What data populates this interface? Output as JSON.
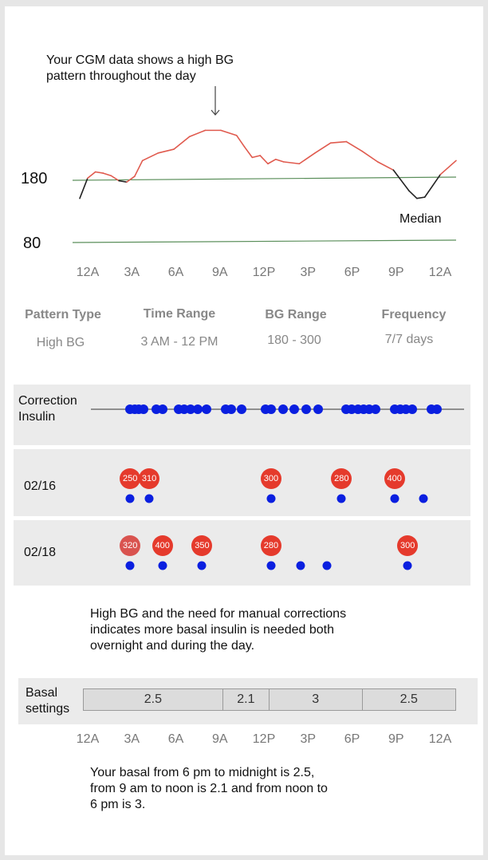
{
  "annotation": "Your CGM data shows a high BG pattern throughout the day",
  "chart_data": {
    "type": "line",
    "title": "",
    "xlabel": "",
    "ylabel": "",
    "y_reference_labels": [
      "180",
      "80"
    ],
    "median_label": "Median",
    "x_ticks": [
      "12A",
      "3A",
      "6A",
      "9A",
      "12P",
      "3P",
      "6P",
      "9P",
      "12A"
    ],
    "series": [
      {
        "name": "Median",
        "color_in_range": "#222222",
        "color_high": "#e05a4e",
        "x_hours": [
          0,
          0.5,
          1,
          1.5,
          2,
          2.5,
          3,
          3.5,
          4,
          5,
          6,
          7,
          8,
          9,
          10,
          10.5,
          11,
          11.5,
          12,
          12.5,
          13,
          14,
          15,
          16,
          17,
          18,
          19,
          20,
          21,
          21.5,
          22,
          22.5,
          23,
          24
        ],
        "y_bg": [
          150,
          182,
          192,
          190,
          186,
          178,
          176,
          185,
          210,
          222,
          228,
          248,
          258,
          258,
          250,
          232,
          215,
          218,
          205,
          212,
          208,
          205,
          222,
          238,
          240,
          225,
          208,
          195,
          162,
          150,
          152,
          170,
          188,
          210
        ]
      }
    ],
    "reference_lines": [
      {
        "y": 180,
        "color": "#5b8f5b"
      },
      {
        "y": 80,
        "color": "#5b8f5b"
      }
    ]
  },
  "pattern_table": {
    "headers": [
      "Pattern Type",
      "Time Range",
      "BG Range",
      "Frequency"
    ],
    "values": [
      "High BG",
      "3 AM - 12 PM",
      "180 - 300",
      "7/7 days"
    ]
  },
  "correction": {
    "label_line1": "Correction",
    "label_line2": "Insulin",
    "dot_hours": [
      1.8,
      2.1,
      2.4,
      2.7,
      3.6,
      4.0,
      5.1,
      5.5,
      5.9,
      6.4,
      7.0,
      8.3,
      8.7,
      9.4,
      11.0,
      11.4,
      12.2,
      13.0,
      13.8,
      14.6,
      16.5,
      16.9,
      17.3,
      17.7,
      18.1,
      18.5,
      19.8,
      20.2,
      20.6,
      21.0,
      22.3,
      22.7
    ]
  },
  "days": [
    {
      "date": "02/16",
      "boluses": [
        {
          "hour": 1.8,
          "bg": "250"
        },
        {
          "hour": 3.1,
          "bg": "310"
        },
        {
          "hour": 11.4,
          "bg": "300"
        },
        {
          "hour": 16.2,
          "bg": "280"
        },
        {
          "hour": 19.8,
          "bg": "400"
        }
      ],
      "dot_hours": [
        1.8,
        3.1,
        11.4,
        16.2,
        19.8,
        21.8
      ]
    },
    {
      "date": "02/18",
      "boluses": [
        {
          "hour": 1.8,
          "bg": "320",
          "muted": true
        },
        {
          "hour": 4.0,
          "bg": "400"
        },
        {
          "hour": 6.7,
          "bg": "350"
        },
        {
          "hour": 11.4,
          "bg": "280"
        },
        {
          "hour": 20.7,
          "bg": "300"
        }
      ],
      "dot_hours": [
        1.8,
        4.0,
        6.7,
        11.4,
        13.4,
        15.2,
        20.7
      ]
    }
  ],
  "note1": "High BG and the need for manual corrections indicates more basal insulin is needed both overnight and during the day.",
  "basal": {
    "label_line1": "Basal",
    "label_line2": "settings",
    "segments": [
      {
        "value": "2.5",
        "start_hour": 0,
        "end_hour": 9
      },
      {
        "value": "2.1",
        "start_hour": 9,
        "end_hour": 12
      },
      {
        "value": "3",
        "start_hour": 12,
        "end_hour": 18
      },
      {
        "value": "2.5",
        "start_hour": 18,
        "end_hour": 24
      }
    ],
    "x_ticks": [
      "12A",
      "3A",
      "6A",
      "9A",
      "12P",
      "3P",
      "6P",
      "9P",
      "12A"
    ]
  },
  "note2": "Your basal from 6 pm to midnight is 2.5, from 9 am to noon is 2.1 and from noon to 6 pm is 3."
}
